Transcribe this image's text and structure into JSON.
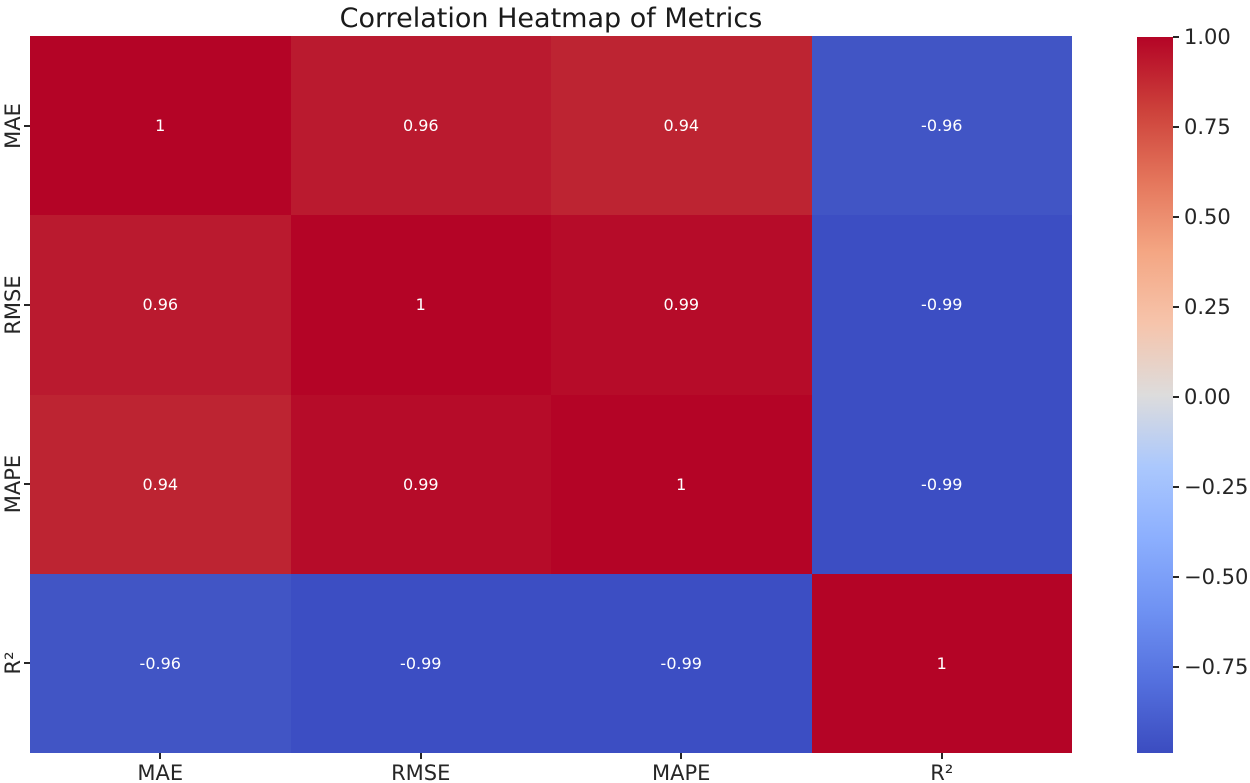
{
  "chart_data": {
    "type": "heatmap",
    "title": "Correlation Heatmap of Metrics",
    "x_categories": [
      "MAE",
      "RMSE",
      "MAPE",
      "R²"
    ],
    "y_categories": [
      "MAE",
      "RMSE",
      "MAPE",
      "R²"
    ],
    "matrix": [
      [
        1,
        0.96,
        0.94,
        -0.96
      ],
      [
        0.96,
        1,
        0.99,
        -0.99
      ],
      [
        0.94,
        0.99,
        1,
        -0.99
      ],
      [
        -0.96,
        -0.99,
        -0.99,
        1
      ]
    ],
    "cell_labels": [
      [
        "1",
        "0.96",
        "0.94",
        "-0.96"
      ],
      [
        "0.96",
        "1",
        "0.99",
        "-0.99"
      ],
      [
        "0.94",
        "0.99",
        "1",
        "-0.99"
      ],
      [
        "-0.96",
        "-0.99",
        "-0.99",
        "1"
      ]
    ],
    "cell_colors": [
      [
        "#b40426",
        "#ba1a2f",
        "#bd2432",
        "#4155c5"
      ],
      [
        "#ba1a2f",
        "#b40426",
        "#b60c29",
        "#3c4ec3"
      ],
      [
        "#bd2432",
        "#b60c29",
        "#b40426",
        "#3c4ec3"
      ],
      [
        "#4155c5",
        "#3c4ec3",
        "#3c4ec3",
        "#b40426"
      ]
    ],
    "annotation_text_color": "#ffffff",
    "colormap": "coolwarm",
    "color_range": [
      -0.99,
      1.0
    ],
    "colorbar_tick_labels": [
      "1.00",
      "0.75",
      "0.50",
      "0.25",
      "0.00",
      "−0.25",
      "−0.50",
      "−0.75"
    ],
    "colorbar_tick_values": [
      1.0,
      0.75,
      0.5,
      0.25,
      0.0,
      -0.25,
      -0.5,
      -0.75
    ],
    "gradient_stops": [
      {
        "pos": 0.0,
        "color": "#3b4cc0"
      },
      {
        "pos": 0.1,
        "color": "#5470de"
      },
      {
        "pos": 0.2,
        "color": "#6f92f3"
      },
      {
        "pos": 0.3,
        "color": "#8caffe"
      },
      {
        "pos": 0.4,
        "color": "#abc8fd"
      },
      {
        "pos": 0.5,
        "color": "#dddcdc"
      },
      {
        "pos": 0.6,
        "color": "#f6c4ab"
      },
      {
        "pos": 0.7,
        "color": "#f4a683"
      },
      {
        "pos": 0.8,
        "color": "#e4755b"
      },
      {
        "pos": 0.9,
        "color": "#cc403a"
      },
      {
        "pos": 1.0,
        "color": "#b40426"
      }
    ],
    "legend_position": "right-colorbar",
    "grid": false
  }
}
